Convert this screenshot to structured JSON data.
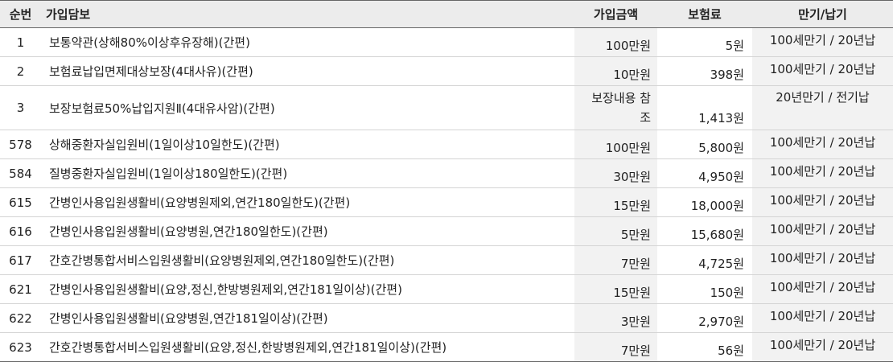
{
  "headers": {
    "no": "순번",
    "name": "가입담보",
    "amount": "가입금액",
    "premium": "보험료",
    "term": "만기/납기"
  },
  "rows": [
    {
      "no": "1",
      "name": "보통약관(상해80%이상후유장해)(간편)",
      "amount": "100만원",
      "premium": "5원",
      "term": "100세만기 / 20년납"
    },
    {
      "no": "2",
      "name": "보험료납입면제대상보장(4대사유)(간편)",
      "amount": "10만원",
      "premium": "398원",
      "term": "100세만기 / 20년납"
    },
    {
      "no": "3",
      "name": "보장보험료50%납입지원Ⅱ(4대유사암)(간편)",
      "amount": "보장내용 참조",
      "premium": "1,413원",
      "term": "20년만기 / 전기납"
    },
    {
      "no": "578",
      "name": "상해중환자실입원비(1일이상10일한도)(간편)",
      "amount": "100만원",
      "premium": "5,800원",
      "term": "100세만기 / 20년납"
    },
    {
      "no": "584",
      "name": "질병중환자실입원비(1일이상180일한도)(간편)",
      "amount": "30만원",
      "premium": "4,950원",
      "term": "100세만기 / 20년납"
    },
    {
      "no": "615",
      "name": "간병인사용입원생활비(요양병원제외,연간180일한도)(간편)",
      "amount": "15만원",
      "premium": "18,000원",
      "term": "100세만기 / 20년납"
    },
    {
      "no": "616",
      "name": "간병인사용입원생활비(요양병원,연간180일한도)(간편)",
      "amount": "5만원",
      "premium": "15,680원",
      "term": "100세만기 / 20년납"
    },
    {
      "no": "617",
      "name": "간호간병통합서비스입원생활비(요양병원제외,연간180일한도)(간편)",
      "amount": "7만원",
      "premium": "4,725원",
      "term": "100세만기 / 20년납"
    },
    {
      "no": "621",
      "name": "간병인사용입원생활비(요양,정신,한방병원제외,연간181일이상)(간편)",
      "amount": "15만원",
      "premium": "150원",
      "term": "100세만기 / 20년납"
    },
    {
      "no": "622",
      "name": "간병인사용입원생활비(요양병원,연간181일이상)(간편)",
      "amount": "3만원",
      "premium": "2,970원",
      "term": "100세만기 / 20년납"
    },
    {
      "no": "623",
      "name": "간호간병통합서비스입원생활비(요양,정신,한방병원제외,연간181일이상)(간편)",
      "amount": "7만원",
      "premium": "56원",
      "term": "100세만기 / 20년납"
    }
  ]
}
